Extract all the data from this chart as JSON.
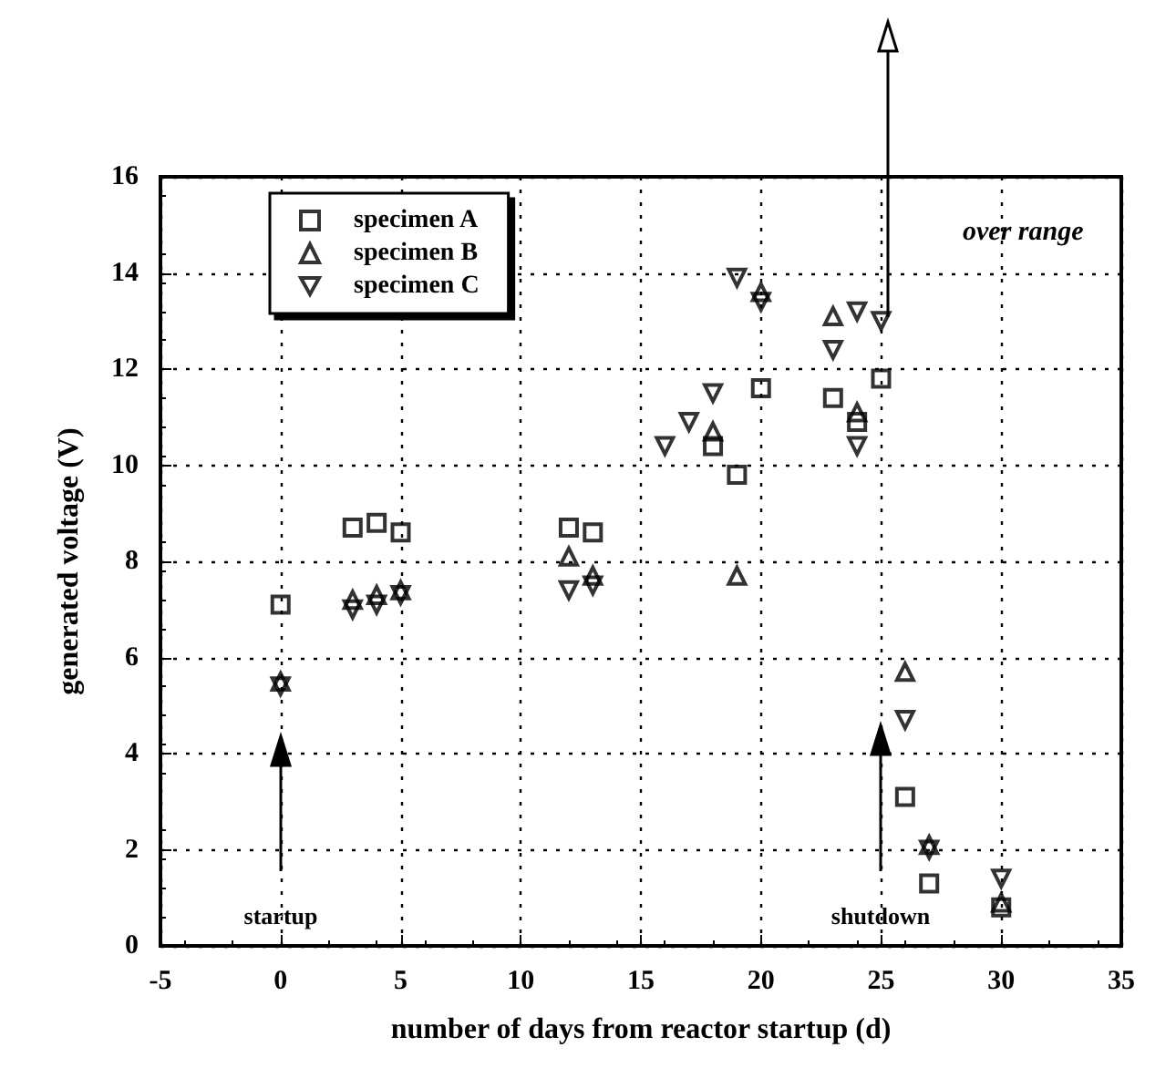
{
  "chart_data": {
    "type": "scatter",
    "xlabel": "number of days from reactor startup (d)",
    "ylabel": "generated voltage (V)",
    "xlim": [
      -5,
      35
    ],
    "xticks": [
      -5,
      0,
      5,
      10,
      15,
      20,
      25,
      30,
      35
    ],
    "ylim": [
      0,
      16
    ],
    "yticks": [
      0,
      2,
      4,
      6,
      8,
      10,
      12,
      14,
      16
    ],
    "grid": true,
    "legend": "top left",
    "series": [
      {
        "name": "specimen A",
        "color": "#000000",
        "marker": "square",
        "x": [
          0,
          3,
          4,
          5,
          12,
          13,
          18,
          19,
          20,
          23,
          24,
          25,
          26,
          27,
          30
        ],
        "values": [
          7.1,
          8.7,
          8.8,
          8.6,
          8.7,
          8.6,
          10.4,
          9.8,
          11.6,
          11.4,
          10.9,
          11.8,
          3.1,
          1.3,
          0.8
        ]
      },
      {
        "name": "specimen B",
        "color": "#000000",
        "marker": "triangle",
        "x": [
          0,
          3,
          4,
          5,
          12,
          13,
          18,
          19,
          20,
          23,
          24,
          26,
          27,
          30
        ],
        "values": [
          5.5,
          7.2,
          7.3,
          7.4,
          8.1,
          7.7,
          10.7,
          7.7,
          13.6,
          13.1,
          11.1,
          5.7,
          2.1,
          0.9
        ]
      },
      {
        "name": "specimen C",
        "color": "#000000",
        "marker": "triangle_down",
        "x": [
          0,
          3,
          4,
          5,
          12,
          13,
          16,
          17,
          18,
          19,
          20,
          23,
          24,
          25,
          24,
          26,
          27,
          30
        ],
        "values": [
          5.4,
          7.0,
          7.1,
          7.3,
          7.4,
          7.5,
          10.4,
          10.9,
          11.5,
          13.9,
          13.4,
          12.4,
          13.2,
          13.0,
          10.4,
          4.7,
          2.0,
          1.4
        ]
      }
    ],
    "annotations": [
      "startup",
      "shutdown",
      "over range"
    ]
  }
}
